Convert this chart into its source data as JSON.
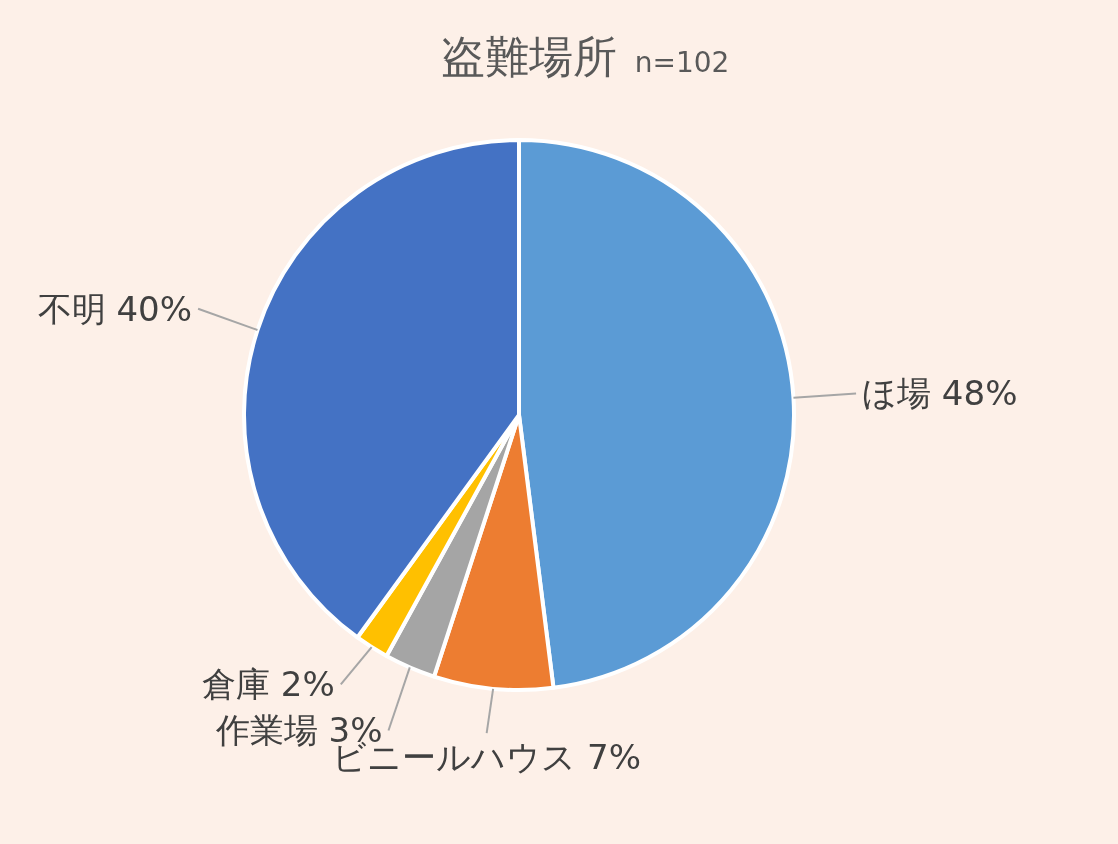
{
  "chart_data": {
    "type": "pie",
    "title": "盗難場所",
    "subtitle": "n=102",
    "categories": [
      "ほ場",
      "ビニールハウス",
      "作業場",
      "倉庫",
      "不明"
    ],
    "values": [
      48,
      7,
      3,
      2,
      40
    ],
    "value_labels": [
      "48%",
      "7%",
      "3%",
      "2%",
      "40%"
    ],
    "colors": [
      "#5b9bd5",
      "#ed7d31",
      "#a5a5a5",
      "#ffc000",
      "#4472c4"
    ],
    "legend": false
  }
}
